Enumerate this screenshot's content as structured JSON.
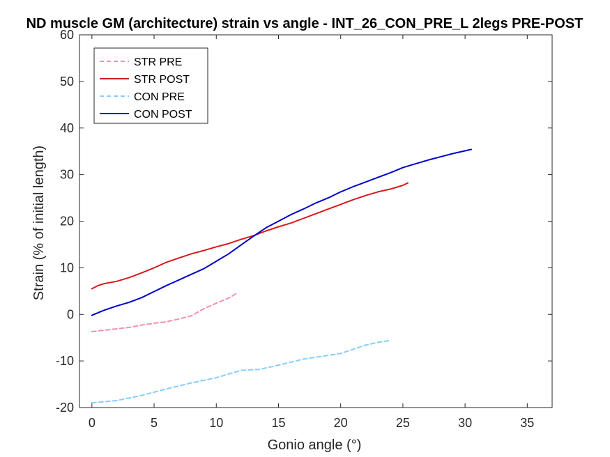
{
  "chart_data": {
    "type": "line",
    "title": "ND muscle GM (architecture) strain vs angle - INT_26_CON_PRE_L 2legs PRE-POST",
    "xlabel": "Gonio angle (°)",
    "ylabel": "Strain (% of initial length)",
    "xlim": [
      -1,
      37
    ],
    "ylim": [
      -20,
      60
    ],
    "xticks": [
      "0",
      "5",
      "10",
      "15",
      "20",
      "25",
      "30",
      "35"
    ],
    "yticks": [
      "-20",
      "-10",
      "0",
      "10",
      "20",
      "30",
      "40",
      "50",
      "60"
    ],
    "grid": false,
    "legend_position": "top-left",
    "series": [
      {
        "name": "STR PRE",
        "color": "#f48fb1",
        "dash": true,
        "x": [
          0,
          1,
          2,
          3,
          4,
          5,
          6,
          7,
          8,
          9,
          10,
          11,
          11.7
        ],
        "y": [
          -3.7,
          -3.4,
          -3.1,
          -2.8,
          -2.3,
          -1.9,
          -1.6,
          -1.0,
          -0.3,
          1.2,
          2.4,
          3.5,
          4.6
        ]
      },
      {
        "name": "STR POST",
        "color": "#d7191c",
        "dash": false,
        "x": [
          0,
          0.5,
          1,
          2,
          3,
          4,
          5,
          6,
          7,
          8,
          9,
          10,
          11,
          12,
          13,
          14,
          15,
          16,
          17,
          18,
          19,
          20,
          21,
          22,
          23,
          24,
          25,
          25.4
        ],
        "y": [
          5.5,
          6.2,
          6.6,
          7.1,
          7.9,
          8.9,
          10.0,
          11.2,
          12.1,
          13.0,
          13.7,
          14.5,
          15.2,
          16.1,
          16.9,
          17.9,
          18.8,
          19.6,
          20.6,
          21.6,
          22.6,
          23.6,
          24.6,
          25.5,
          26.3,
          26.9,
          27.7,
          28.2
        ]
      },
      {
        "name": "CON PRE",
        "color": "#87cefa",
        "dash": true,
        "x": [
          0,
          2,
          4,
          6,
          8,
          10,
          12,
          13.5,
          15,
          17,
          19,
          20,
          21,
          22,
          23,
          24
        ],
        "y": [
          -19.0,
          -18.5,
          -17.4,
          -16.0,
          -14.7,
          -13.6,
          -12.0,
          -11.8,
          -10.9,
          -9.6,
          -8.8,
          -8.4,
          -7.5,
          -6.6,
          -6.0,
          -5.6
        ]
      },
      {
        "name": "CON POST",
        "color": "#0000c8",
        "dash": false,
        "x": [
          0,
          1,
          2,
          3,
          4,
          5,
          6,
          7,
          8,
          9,
          10,
          11,
          12,
          13,
          14,
          15,
          16,
          17,
          18,
          19,
          20,
          21,
          22,
          23,
          24,
          25,
          26,
          27,
          28,
          29,
          30,
          30.5
        ],
        "y": [
          -0.2,
          0.9,
          1.8,
          2.6,
          3.6,
          4.9,
          6.2,
          7.4,
          8.6,
          9.8,
          11.4,
          13.0,
          14.9,
          16.8,
          18.6,
          20.0,
          21.4,
          22.6,
          23.9,
          25.0,
          26.3,
          27.4,
          28.4,
          29.4,
          30.4,
          31.5,
          32.3,
          33.1,
          33.8,
          34.5,
          35.1,
          35.4
        ]
      }
    ]
  }
}
